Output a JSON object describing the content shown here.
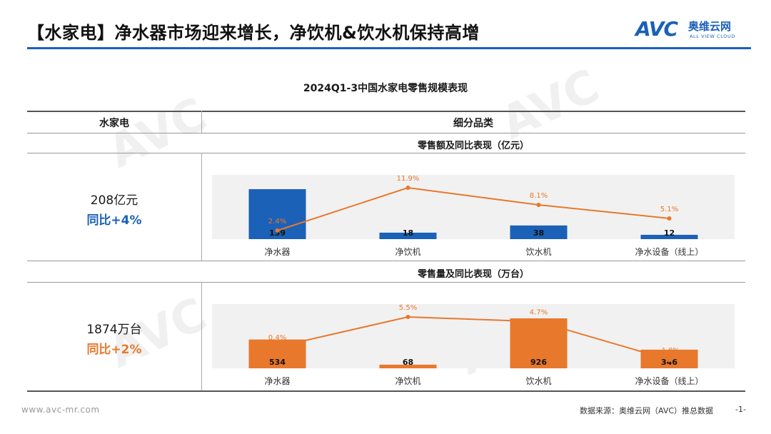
{
  "page": {
    "title": "【水家电】净水器市场迎来增长，净饮机&饮水机保持高增",
    "logo_text": "AVC",
    "logo_cn": "奥维云网",
    "logo_en": "ALL VIEW CLOUD",
    "chart_title": "2024Q1-3中国水家电零售规模表现",
    "col_left_header": "水家电",
    "col_right_header": "细分品类",
    "footer_url": "www.avc-mr.com",
    "footer_source": "数据来源：奥维云网（AVC）推总数据",
    "footer_page": "-1-"
  },
  "colors": {
    "accent": "#1b61b8",
    "orange": "#e8782c",
    "panel_bg": "#f1f1f1"
  },
  "chart_data": [
    {
      "type": "bar",
      "subtitle": "零售额及同比表现（亿元）",
      "total_value": "208亿元",
      "total_yoy": "同比+4%",
      "categories": [
        "净水器",
        "净饮机",
        "饮水机",
        "净水设备（线上）"
      ],
      "series": [
        {
          "kind": "bar",
          "values": [
            139,
            18,
            38,
            12
          ],
          "color": "#1b61b8"
        },
        {
          "kind": "line",
          "values": [
            2.4,
            11.9,
            8.1,
            5.1
          ],
          "color": "#e8782c",
          "labels": [
            "2.4%",
            "11.9%",
            "8.1%",
            "5.1%"
          ]
        }
      ],
      "bar_labels": [
        "139",
        "18",
        "38",
        "12"
      ]
    },
    {
      "type": "bar",
      "subtitle": "零售量及同比表现（万台）",
      "total_value": "1874万台",
      "total_yoy": "同比+2%",
      "categories": [
        "净水器",
        "净饮机",
        "饮水机",
        "净水设备（线上）"
      ],
      "series": [
        {
          "kind": "bar",
          "values": [
            534,
            68,
            926,
            346
          ],
          "color": "#e8782c"
        },
        {
          "kind": "line",
          "values": [
            0.4,
            5.5,
            4.7,
            -1.8
          ],
          "color": "#e8782c",
          "labels": [
            "0.4%",
            "5.5%",
            "4.7%",
            "-1.8%"
          ]
        }
      ],
      "bar_labels": [
        "534",
        "68",
        "926",
        "346"
      ]
    }
  ]
}
